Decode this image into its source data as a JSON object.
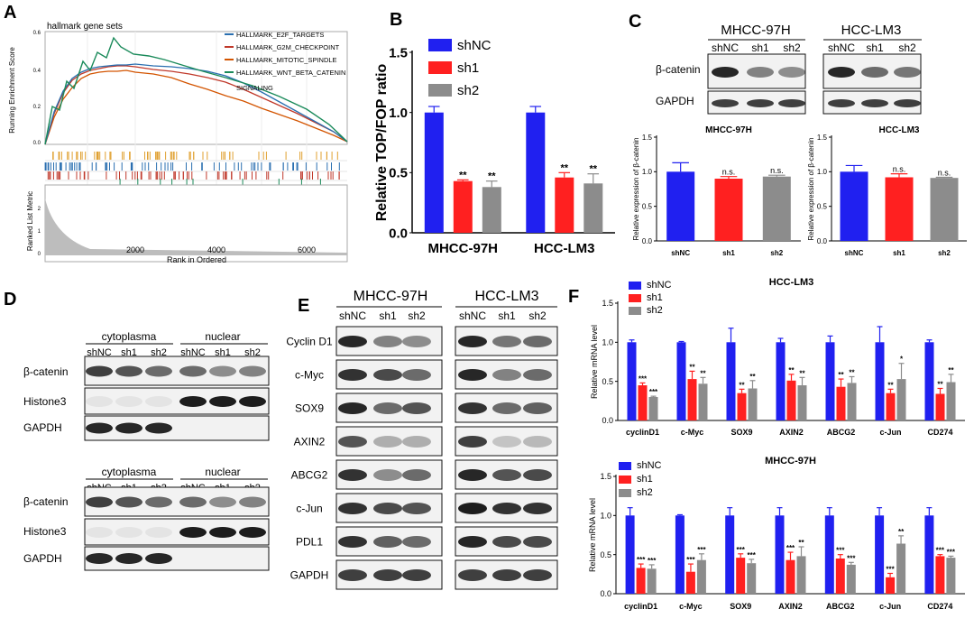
{
  "colors": {
    "blue": "#2020f0",
    "red": "#ff2020",
    "gray": "#8c8c8c",
    "panelA": [
      "#c0392b",
      "#d35400",
      "#e0a030",
      "#1a8a5a",
      "#2a6fb0"
    ]
  },
  "panels": {
    "A": "A",
    "B": "B",
    "C": "C",
    "D": "D",
    "E": "E",
    "F": "F"
  },
  "panelA": {
    "title": "hallmark gene sets",
    "legend": [
      "HALLMARK_E2F_TARGETS",
      "HALLMARK_G2M_CHECKPOINT",
      "HALLMARK_MITOTIC_SPINDLE",
      "HALLMARK_WNT_BETA_CATENIN",
      "SIGNALING"
    ],
    "ylabel_top": "Running Enrichment Score",
    "ylabel_bottom": "Ranked List Metric",
    "xlabel": "Rank in Ordered",
    "xticks": [
      "2000",
      "4000",
      "6000"
    ],
    "yticks_top": [
      "0.6",
      "0.4",
      "0.2",
      "0.0"
    ],
    "yticks_bottom": [
      "2",
      "1",
      "0"
    ]
  },
  "chart_data": [
    {
      "id": "B",
      "type": "bar",
      "ylabel": "Relative TOP/FOP ratio",
      "ylim": [
        0,
        1.5
      ],
      "yticks": [
        "0.0",
        "0.5",
        "1.0",
        "1.5"
      ],
      "categories": [
        "MHCC-97H",
        "HCC-LM3"
      ],
      "series": [
        {
          "name": "shNC",
          "values": [
            1.0,
            1.0
          ],
          "err": [
            0.05,
            0.05
          ],
          "sig": [
            "",
            ""
          ]
        },
        {
          "name": "sh1",
          "values": [
            0.43,
            0.46
          ],
          "err": [
            0.01,
            0.04
          ],
          "sig": [
            "**",
            "**"
          ]
        },
        {
          "name": "sh2",
          "values": [
            0.38,
            0.41
          ],
          "err": [
            0.05,
            0.08
          ],
          "sig": [
            "**",
            "**"
          ]
        }
      ]
    },
    {
      "id": "C1",
      "type": "bar",
      "title": "MHCC-97H",
      "ylabel": "Relative expression of β-catenin",
      "ylim": [
        0,
        1.5
      ],
      "yticks": [
        "0.0",
        "0.5",
        "1.0",
        "1.5"
      ],
      "categories": [
        "shNC",
        "sh1",
        "sh2"
      ],
      "values": [
        1.0,
        0.9,
        0.93
      ],
      "err": [
        0.13,
        0.03,
        0.02
      ],
      "sig": [
        "",
        "n.s.",
        "n.s."
      ]
    },
    {
      "id": "C2",
      "type": "bar",
      "title": "HCC-LM3",
      "ylabel": "Relative expression of β-catenin",
      "ylim": [
        0,
        1.5
      ],
      "yticks": [
        "0.0",
        "0.5",
        "1.0",
        "1.5"
      ],
      "categories": [
        "shNC",
        "sh1",
        "sh2"
      ],
      "values": [
        1.0,
        0.92,
        0.91
      ],
      "err": [
        0.09,
        0.05,
        0.01
      ],
      "sig": [
        "",
        "n.s.",
        "n.s."
      ]
    },
    {
      "id": "F1",
      "type": "bar",
      "title": "HCC-LM3",
      "ylabel": "Relative mRNA level",
      "ylim": [
        0,
        1.5
      ],
      "yticks": [
        "0.0",
        "0.5",
        "1.0",
        "1.5"
      ],
      "categories": [
        "cyclinD1",
        "c-Myc",
        "SOX9",
        "AXIN2",
        "ABCG2",
        "c-Jun",
        "CD274"
      ],
      "series": [
        {
          "name": "shNC",
          "values": [
            1.0,
            1.0,
            1.0,
            1.0,
            1.0,
            1.0,
            1.0
          ],
          "err": [
            0.03,
            0.01,
            0.18,
            0.05,
            0.08,
            0.2,
            0.03
          ],
          "sig": [
            "",
            "",
            "",
            "",
            "",
            "",
            ""
          ]
        },
        {
          "name": "sh1",
          "values": [
            0.45,
            0.53,
            0.35,
            0.51,
            0.43,
            0.35,
            0.34
          ],
          "err": [
            0.03,
            0.1,
            0.05,
            0.08,
            0.1,
            0.05,
            0.07
          ],
          "sig": [
            "***",
            "**",
            "**",
            "**",
            "**",
            "**",
            "**"
          ]
        },
        {
          "name": "sh2",
          "values": [
            0.3,
            0.47,
            0.41,
            0.45,
            0.48,
            0.53,
            0.49
          ],
          "err": [
            0.01,
            0.08,
            0.1,
            0.1,
            0.08,
            0.2,
            0.1
          ],
          "sig": [
            "***",
            "**",
            "**",
            "**",
            "**",
            "*",
            "**"
          ]
        }
      ]
    },
    {
      "id": "F2",
      "type": "bar",
      "title": "MHCC-97H",
      "ylabel": "Relative mRNA level",
      "ylim": [
        0,
        1.5
      ],
      "yticks": [
        "0.0",
        "0.5",
        "1.0",
        "1.5"
      ],
      "categories": [
        "cyclinD1",
        "c-Myc",
        "SOX9",
        "AXIN2",
        "ABCG2",
        "c-Jun",
        "CD274"
      ],
      "series": [
        {
          "name": "shNC",
          "values": [
            1.0,
            1.0,
            1.0,
            1.0,
            1.0,
            1.0,
            1.0
          ],
          "err": [
            0.1,
            0.01,
            0.1,
            0.1,
            0.1,
            0.1,
            0.1
          ],
          "sig": [
            "",
            "",
            "",
            "",
            "",
            "",
            ""
          ]
        },
        {
          "name": "sh1",
          "values": [
            0.33,
            0.28,
            0.46,
            0.43,
            0.45,
            0.21,
            0.48
          ],
          "err": [
            0.05,
            0.1,
            0.05,
            0.1,
            0.05,
            0.05,
            0.02
          ],
          "sig": [
            "***",
            "***",
            "***",
            "***",
            "***",
            "***",
            "***"
          ]
        },
        {
          "name": "sh2",
          "values": [
            0.32,
            0.43,
            0.39,
            0.48,
            0.37,
            0.64,
            0.46
          ],
          "err": [
            0.05,
            0.08,
            0.05,
            0.12,
            0.03,
            0.1,
            0.02
          ],
          "sig": [
            "***",
            "***",
            "***",
            "**",
            "***",
            "**",
            "***"
          ]
        }
      ]
    }
  ],
  "panelC": {
    "cells": [
      "MHCC-97H",
      "HCC-LM3"
    ],
    "lanes": [
      "shNC",
      "sh1",
      "sh2"
    ],
    "rows": [
      "β-catenin",
      "GAPDH"
    ]
  },
  "panelD": {
    "top": {
      "groups": [
        "cytoplasma",
        "nuclear"
      ],
      "lanes": [
        "shNC",
        "sh1",
        "sh2",
        "shNC",
        "sh1",
        "sh2"
      ],
      "rows": [
        "β-catenin",
        "Histone3",
        "GAPDH"
      ]
    },
    "bottom": {
      "groups": [
        "cytoplasma",
        "nuclear"
      ],
      "lanes": [
        "shNC",
        "sh1",
        "sh2",
        "shNC",
        "sh1",
        "sh2"
      ],
      "rows": [
        "β-catenin",
        "Histone3",
        "GAPDH"
      ]
    }
  },
  "panelE": {
    "cells": [
      "MHCC-97H",
      "HCC-LM3"
    ],
    "lanes": [
      "shNC",
      "sh1",
      "sh2"
    ],
    "rows": [
      "Cyclin D1",
      "c-Myc",
      "SOX9",
      "AXIN2",
      "ABCG2",
      "c-Jun",
      "PDL1",
      "GAPDH"
    ]
  }
}
